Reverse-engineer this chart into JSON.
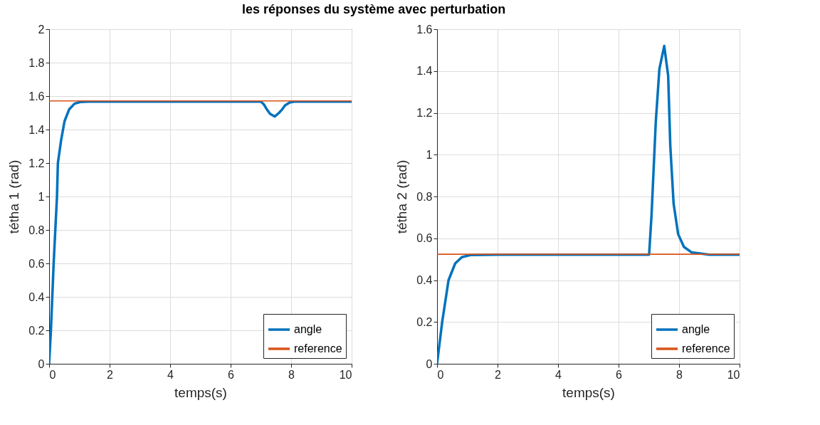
{
  "chart_data": [
    {
      "type": "line",
      "title": "les réponses du système avec perturbation",
      "xlabel": "temps(s)",
      "ylabel": "tétha 1 (rad)",
      "xlim": [
        0,
        10
      ],
      "xticks": [
        0,
        2,
        4,
        6,
        8,
        10
      ],
      "ylim": [
        0,
        2
      ],
      "yticks": [
        0,
        0.2,
        0.4,
        0.6,
        0.8,
        1,
        1.2,
        1.4,
        1.6,
        1.8,
        2
      ],
      "grid": true,
      "legend": "bottom right",
      "series": [
        {
          "name": "angle",
          "color": "#0072bd",
          "x": [
            0,
            0.06,
            0.15,
            0.26,
            0.29,
            0.4,
            0.51,
            0.66,
            0.84,
            1.03,
            1.3,
            2,
            4,
            6,
            7,
            7.1,
            7.2,
            7.3,
            7.46,
            7.6,
            7.7,
            7.8,
            7.95,
            8.1,
            8.3,
            9,
            10
          ],
          "values": [
            0,
            0.2,
            0.6,
            1,
            1.2,
            1.34,
            1.45,
            1.52,
            1.555,
            1.565,
            1.567,
            1.567,
            1.567,
            1.567,
            1.567,
            1.55,
            1.52,
            1.495,
            1.478,
            1.5,
            1.52,
            1.545,
            1.562,
            1.567,
            1.567,
            1.567,
            1.567
          ]
        },
        {
          "name": "reference",
          "color": "#d95319",
          "x": [
            0,
            10
          ],
          "values": [
            1.571,
            1.571
          ]
        }
      ]
    },
    {
      "type": "line",
      "xlabel": "temps(s)",
      "ylabel": "tétha 2 (rad)",
      "xlim": [
        0,
        10
      ],
      "xticks": [
        0,
        2,
        4,
        6,
        8,
        10
      ],
      "ylim": [
        0,
        1.6
      ],
      "yticks": [
        0,
        0.2,
        0.4,
        0.6,
        0.8,
        1,
        1.2,
        1.4,
        1.6
      ],
      "grid": true,
      "legend": "bottom right",
      "series": [
        {
          "name": "angle",
          "color": "#0072bd",
          "x": [
            0,
            0.17,
            0.38,
            0.6,
            0.82,
            1.1,
            2,
            4,
            6,
            7.01,
            7.09,
            7.23,
            7.35,
            7.51,
            7.64,
            7.71,
            7.82,
            7.97,
            8.16,
            8.41,
            9,
            10
          ],
          "values": [
            0,
            0.2,
            0.4,
            0.48,
            0.51,
            0.52,
            0.522,
            0.522,
            0.522,
            0.522,
            0.71,
            1.155,
            1.41,
            1.52,
            1.377,
            1.043,
            0.765,
            0.62,
            0.559,
            0.533,
            0.522,
            0.522
          ]
        },
        {
          "name": "reference",
          "color": "#d95319",
          "x": [
            0,
            10
          ],
          "values": [
            0.524,
            0.524
          ]
        }
      ]
    }
  ]
}
